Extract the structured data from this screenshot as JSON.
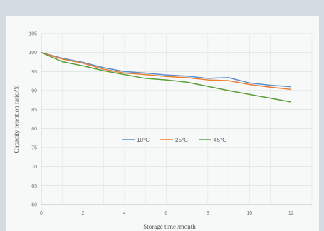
{
  "chart_data": {
    "type": "line",
    "title": "",
    "xlabel": "Storage time /month",
    "ylabel": "Capacity retention ratio/%",
    "xlim": [
      0,
      13
    ],
    "ylim": [
      60,
      105
    ],
    "xticks": [
      0,
      2,
      4,
      6,
      8,
      10,
      12
    ],
    "yticks": [
      60,
      65,
      70,
      75,
      80,
      85,
      90,
      95,
      100,
      105
    ],
    "grid": true,
    "legend_position": "center",
    "series": [
      {
        "name": "10℃",
        "color": "#5b8fc9",
        "x": [
          0,
          1,
          2,
          3,
          4,
          5,
          6,
          7,
          8,
          9,
          10,
          11,
          12
        ],
        "values": [
          100,
          98.5,
          97.4,
          96.0,
          95.0,
          94.6,
          94.1,
          93.8,
          93.2,
          93.4,
          92.0,
          91.4,
          91.0
        ]
      },
      {
        "name": "25℃",
        "color": "#ed7d31",
        "x": [
          0,
          1,
          2,
          3,
          4,
          5,
          6,
          7,
          8,
          9,
          10,
          11,
          12
        ],
        "values": [
          100,
          98.3,
          97.2,
          95.6,
          94.6,
          94.2,
          93.7,
          93.4,
          92.8,
          92.6,
          91.6,
          90.9,
          90.3
        ]
      },
      {
        "name": "45℃",
        "color": "#5a9e3a",
        "x": [
          0,
          1,
          2,
          3,
          4,
          5,
          6,
          7,
          8,
          9,
          10,
          11,
          12
        ],
        "values": [
          100,
          97.6,
          96.5,
          95.2,
          94.2,
          93.2,
          92.8,
          92.2,
          91.1,
          90.0,
          89.0,
          88.0,
          87.0
        ]
      }
    ]
  }
}
